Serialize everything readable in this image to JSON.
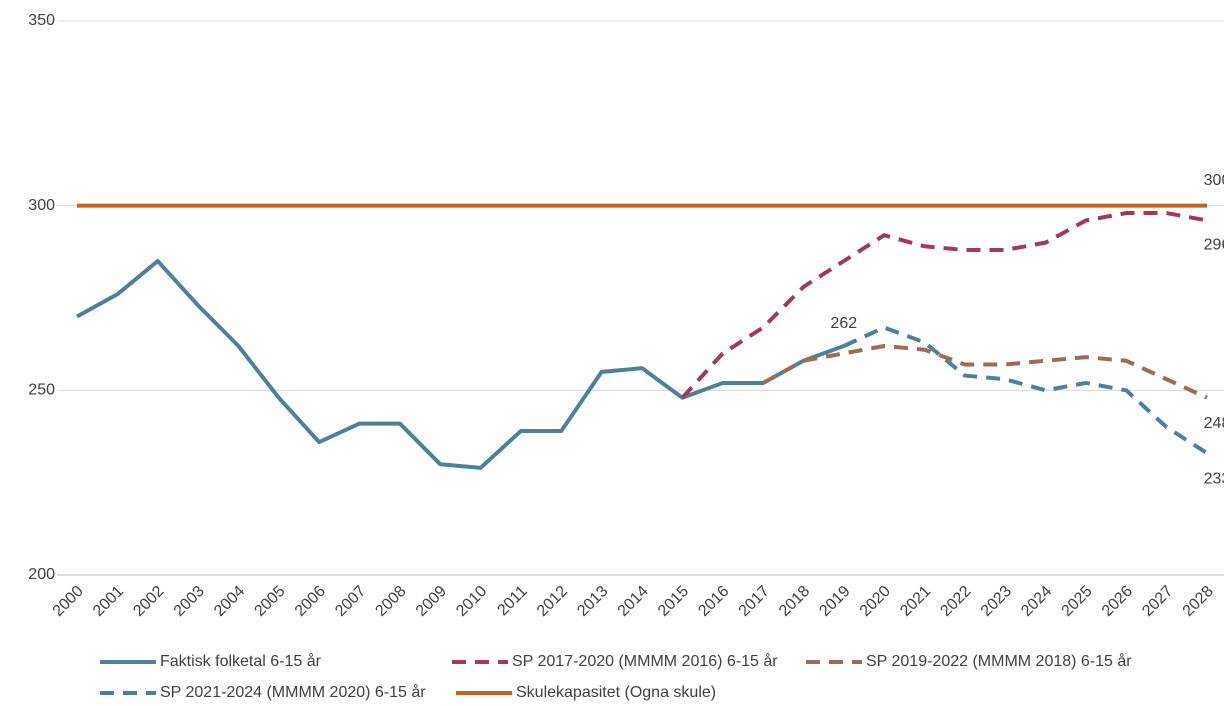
{
  "chart_data": {
    "type": "line",
    "categories": [
      "2000",
      "2001",
      "2002",
      "2003",
      "2004",
      "2005",
      "2006",
      "2007",
      "2008",
      "2009",
      "2010",
      "2011",
      "2012",
      "2013",
      "2014",
      "2015",
      "2016",
      "2017",
      "2018",
      "2019",
      "2020",
      "2021",
      "2022",
      "2023",
      "2024",
      "2025",
      "2026",
      "2027",
      "2028"
    ],
    "ylim": [
      200,
      350
    ],
    "yticks": [
      200,
      250,
      300,
      350
    ],
    "grid": true,
    "legend": "bottom",
    "series": [
      {
        "name": "Faktisk folketal 6-15 år",
        "color": "#4e8198",
        "dash": "solid",
        "values": [
          270,
          276,
          285,
          273,
          262,
          248,
          236,
          241,
          241,
          230,
          229,
          239,
          239,
          255,
          256,
          248,
          252,
          252,
          258,
          262,
          null,
          null,
          null,
          null,
          null,
          null,
          null,
          null,
          null
        ]
      },
      {
        "name": "SP 2017-2020 (MMMM 2016) 6-15 år",
        "color": "#a3375f",
        "dash": "dashed",
        "values": [
          null,
          null,
          null,
          null,
          null,
          null,
          null,
          null,
          null,
          null,
          null,
          null,
          null,
          null,
          null,
          248,
          260,
          267,
          278,
          285,
          292,
          289,
          288,
          288,
          290,
          296,
          298,
          298,
          296
        ]
      },
      {
        "name": "SP 2019-2022 (MMMM 2018) 6-15 år",
        "color": "#9c6d56",
        "dash": "dashed",
        "values": [
          null,
          null,
          null,
          null,
          null,
          null,
          null,
          null,
          null,
          null,
          null,
          null,
          null,
          null,
          null,
          null,
          null,
          252,
          258,
          260,
          262,
          261,
          257,
          257,
          258,
          259,
          258,
          253,
          248
        ]
      },
      {
        "name": "SP 2021-2024 (MMMM 2020) 6-15 år",
        "color": "#4e8198",
        "dash": "dashed",
        "values": [
          null,
          null,
          null,
          null,
          null,
          null,
          null,
          null,
          null,
          null,
          null,
          null,
          null,
          null,
          null,
          null,
          null,
          null,
          null,
          262,
          267,
          263,
          254,
          253,
          250,
          252,
          250,
          240,
          233
        ]
      },
      {
        "name": "Skulekapasitet (Ogna skule)",
        "color": "#c8621f",
        "dash": "solid",
        "values": [
          300,
          300,
          300,
          300,
          300,
          300,
          300,
          300,
          300,
          300,
          300,
          300,
          300,
          300,
          300,
          300,
          300,
          300,
          300,
          300,
          300,
          300,
          300,
          300,
          300,
          300,
          300,
          300,
          300
        ]
      }
    ]
  }
}
